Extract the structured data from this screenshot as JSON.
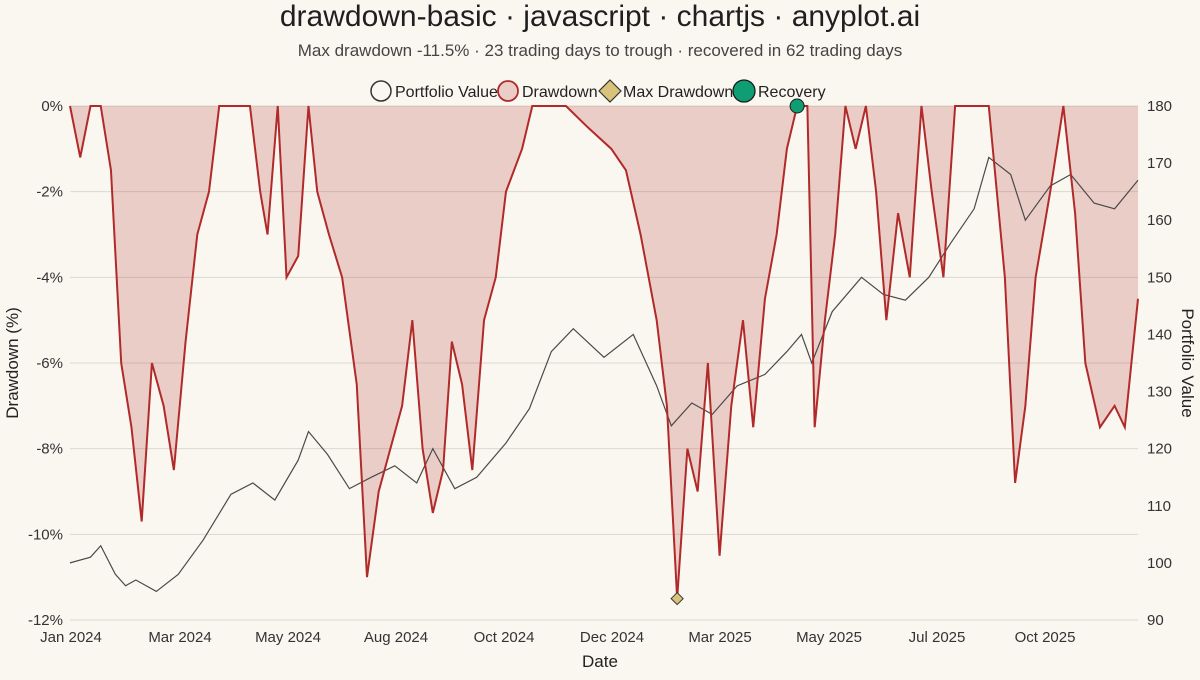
{
  "chart_data": {
    "type": "line",
    "title": "drawdown-basic · javascript · chartjs · anyplot.ai",
    "subtitle": "Max drawdown -11.5% · 23 trading days to trough · recovered in 62 trading days",
    "xlabel": "Date",
    "ylabel_left": "Drawdown (%)",
    "ylabel_right": "Portfolio Value",
    "x_ticks": [
      "Jan 2024",
      "Mar 2024",
      "May 2024",
      "Aug 2024",
      "Oct 2024",
      "Dec 2024",
      "Mar 2025",
      "May 2025",
      "Jul 2025",
      "Oct 2025"
    ],
    "y_left_ticks": [
      "0%",
      "-2%",
      "-4%",
      "-6%",
      "-8%",
      "-10%",
      "-12%"
    ],
    "y_left_range": [
      -12,
      0
    ],
    "y_right_ticks": [
      "180",
      "170",
      "160",
      "150",
      "140",
      "130",
      "120",
      "110",
      "100",
      "90"
    ],
    "y_right_range": [
      90,
      180
    ],
    "legend_position": "top",
    "grid": true,
    "colors": {
      "portfolio": "#4a4a4a",
      "drawdown_line": "#B02A2A",
      "drawdown_fill": "rgba(176,42,42,0.20)",
      "max_marker": "#D9C27A",
      "recovery_marker": "#0F9E74"
    },
    "series": [
      {
        "name": "Portfolio Value",
        "axis": "right",
        "points": [
          [
            "2024-01-01",
            100
          ],
          [
            "2024-01-15",
            101
          ],
          [
            "2024-01-22",
            103
          ],
          [
            "2024-02-01",
            98
          ],
          [
            "2024-02-08",
            96
          ],
          [
            "2024-02-15",
            97
          ],
          [
            "2024-02-29",
            95
          ],
          [
            "2024-03-15",
            98
          ],
          [
            "2024-04-01",
            104
          ],
          [
            "2024-04-20",
            112
          ],
          [
            "2024-05-05",
            114
          ],
          [
            "2024-05-20",
            111
          ],
          [
            "2024-06-05",
            118
          ],
          [
            "2024-06-12",
            123
          ],
          [
            "2024-06-25",
            119
          ],
          [
            "2024-07-10",
            113
          ],
          [
            "2024-07-25",
            115
          ],
          [
            "2024-08-10",
            117
          ],
          [
            "2024-08-25",
            114
          ],
          [
            "2024-09-05",
            120
          ],
          [
            "2024-09-20",
            113
          ],
          [
            "2024-10-05",
            115
          ],
          [
            "2024-10-25",
            121
          ],
          [
            "2024-11-10",
            127
          ],
          [
            "2024-11-25",
            137
          ],
          [
            "2024-12-10",
            141
          ],
          [
            "2024-12-31",
            136
          ],
          [
            "2025-01-20",
            140
          ],
          [
            "2025-02-05",
            131
          ],
          [
            "2025-02-15",
            124
          ],
          [
            "2025-03-01",
            128
          ],
          [
            "2025-03-15",
            126
          ],
          [
            "2025-04-01",
            131
          ],
          [
            "2025-04-20",
            133
          ],
          [
            "2025-05-05",
            137
          ],
          [
            "2025-05-15",
            140
          ],
          [
            "2025-05-22",
            135
          ],
          [
            "2025-06-05",
            144
          ],
          [
            "2025-06-25",
            150
          ],
          [
            "2025-07-10",
            147
          ],
          [
            "2025-07-25",
            146
          ],
          [
            "2025-08-10",
            150
          ],
          [
            "2025-08-25",
            156
          ],
          [
            "2025-09-10",
            162
          ],
          [
            "2025-09-20",
            171
          ],
          [
            "2025-10-05",
            168
          ],
          [
            "2025-10-15",
            160
          ],
          [
            "2025-11-01",
            166
          ],
          [
            "2025-11-15",
            168
          ],
          [
            "2025-12-01",
            163
          ],
          [
            "2025-12-15",
            162
          ],
          [
            "2025-12-31",
            167
          ]
        ]
      },
      {
        "name": "Drawdown",
        "axis": "left",
        "points": [
          [
            "2024-01-01",
            0
          ],
          [
            "2024-01-08",
            -1.2
          ],
          [
            "2024-01-15",
            0
          ],
          [
            "2024-01-22",
            0
          ],
          [
            "2024-01-29",
            -1.5
          ],
          [
            "2024-02-05",
            -6.0
          ],
          [
            "2024-02-12",
            -7.5
          ],
          [
            "2024-02-19",
            -9.7
          ],
          [
            "2024-02-26",
            -6.0
          ],
          [
            "2024-03-05",
            -7.0
          ],
          [
            "2024-03-12",
            -8.5
          ],
          [
            "2024-03-20",
            -5.5
          ],
          [
            "2024-03-28",
            -3.0
          ],
          [
            "2024-04-05",
            -2.0
          ],
          [
            "2024-04-12",
            0
          ],
          [
            "2024-04-25",
            0
          ],
          [
            "2024-05-03",
            0
          ],
          [
            "2024-05-10",
            -2.0
          ],
          [
            "2024-05-15",
            -3.0
          ],
          [
            "2024-05-22",
            0
          ],
          [
            "2024-05-28",
            -4.0
          ],
          [
            "2024-06-05",
            -3.5
          ],
          [
            "2024-06-12",
            0
          ],
          [
            "2024-06-18",
            -2.0
          ],
          [
            "2024-06-26",
            -3.0
          ],
          [
            "2024-07-05",
            -4.0
          ],
          [
            "2024-07-15",
            -6.5
          ],
          [
            "2024-07-22",
            -11.0
          ],
          [
            "2024-07-30",
            -9.0
          ],
          [
            "2024-08-07",
            -8.0
          ],
          [
            "2024-08-15",
            -7.0
          ],
          [
            "2024-08-22",
            -5.0
          ],
          [
            "2024-08-29",
            -8.0
          ],
          [
            "2024-09-05",
            -9.5
          ],
          [
            "2024-09-12",
            -8.5
          ],
          [
            "2024-09-18",
            -5.5
          ],
          [
            "2024-09-25",
            -6.5
          ],
          [
            "2024-10-02",
            -8.5
          ],
          [
            "2024-10-10",
            -5.0
          ],
          [
            "2024-10-18",
            -4.0
          ],
          [
            "2024-10-25",
            -2.0
          ],
          [
            "2024-11-05",
            -1.0
          ],
          [
            "2024-11-12",
            0
          ],
          [
            "2024-11-20",
            0
          ],
          [
            "2024-12-05",
            0
          ],
          [
            "2024-12-20",
            -0.5
          ],
          [
            "2025-01-05",
            -1.0
          ],
          [
            "2025-01-15",
            -1.5
          ],
          [
            "2025-01-25",
            -3.0
          ],
          [
            "2025-02-05",
            -5.0
          ],
          [
            "2025-02-12",
            -7.0
          ],
          [
            "2025-02-19",
            -11.5
          ],
          [
            "2025-02-26",
            -8.0
          ],
          [
            "2025-03-05",
            -9.0
          ],
          [
            "2025-03-12",
            -6.0
          ],
          [
            "2025-03-20",
            -10.5
          ],
          [
            "2025-03-28",
            -7.0
          ],
          [
            "2025-04-05",
            -5.0
          ],
          [
            "2025-04-12",
            -7.5
          ],
          [
            "2025-04-20",
            -4.5
          ],
          [
            "2025-04-28",
            -3.0
          ],
          [
            "2025-05-05",
            -1.0
          ],
          [
            "2025-05-12",
            0
          ],
          [
            "2025-05-19",
            0
          ],
          [
            "2025-05-24",
            -7.5
          ],
          [
            "2025-05-31",
            -5.0
          ],
          [
            "2025-06-07",
            -3.0
          ],
          [
            "2025-06-14",
            0
          ],
          [
            "2025-06-21",
            -1.0
          ],
          [
            "2025-06-28",
            0
          ],
          [
            "2025-07-05",
            -2.0
          ],
          [
            "2025-07-12",
            -5.0
          ],
          [
            "2025-07-20",
            -2.5
          ],
          [
            "2025-07-28",
            -4.0
          ],
          [
            "2025-08-05",
            0
          ],
          [
            "2025-08-12",
            -2.0
          ],
          [
            "2025-08-20",
            -4.0
          ],
          [
            "2025-08-28",
            0
          ],
          [
            "2025-09-10",
            0
          ],
          [
            "2025-09-20",
            0
          ],
          [
            "2025-10-01",
            -4.0
          ],
          [
            "2025-10-08",
            -8.8
          ],
          [
            "2025-10-15",
            -7.0
          ],
          [
            "2025-10-22",
            -4.0
          ],
          [
            "2025-11-01",
            -2.0
          ],
          [
            "2025-11-10",
            0
          ],
          [
            "2025-11-18",
            -2.5
          ],
          [
            "2025-11-25",
            -6.0
          ],
          [
            "2025-12-05",
            -7.5
          ],
          [
            "2025-12-15",
            -7.0
          ],
          [
            "2025-12-22",
            -7.5
          ],
          [
            "2025-12-31",
            -4.5
          ]
        ]
      }
    ],
    "markers": [
      {
        "name": "Max Drawdown",
        "x": "2025-02-19",
        "y": -11.5,
        "shape": "diamond"
      },
      {
        "name": "Recovery",
        "x": "2025-05-12",
        "y": 0,
        "shape": "circle"
      }
    ],
    "x_range": [
      "2024-01-01",
      "2025-12-31"
    ]
  }
}
